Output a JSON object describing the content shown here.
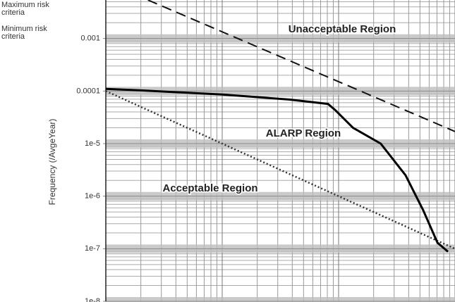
{
  "chart_data": {
    "type": "line",
    "y_label": "Frequency (/AvgeYear)",
    "annotations": [
      "Unacceptable Region",
      "ALARP Region",
      "Acceptable Region"
    ],
    "xlim": [
      1,
      1000
    ],
    "xscale": "log",
    "ylim": [
      1e-08,
      0.0054
    ],
    "yscale": "log",
    "yticks": [
      {
        "value": 1e-08,
        "label": "1e-8"
      },
      {
        "value": 1e-07,
        "label": "1e-7"
      },
      {
        "value": 1e-06,
        "label": "1e-6"
      },
      {
        "value": 1e-05,
        "label": "1e-5"
      },
      0.0001,
      0.001
    ],
    "grid": true,
    "series": [
      {
        "name": "Maximum risk criteria",
        "color": "#111111",
        "style": "dashed",
        "x": [
          2.3,
          1000
        ],
        "values": [
          0.0054,
          1.7e-05
        ]
      },
      {
        "name": "Minimum risk criteria",
        "color": "#333333",
        "style": "dotted",
        "x": [
          1,
          1000
        ],
        "values": [
          0.0001,
          1e-07
        ]
      },
      {
        "color": "#000000",
        "style": "solid",
        "x": [
          1,
          2,
          10,
          37.6,
          81,
          93,
          133,
          230,
          376,
          533,
          707,
          870
        ],
        "values": [
          0.00011,
          0.000103,
          8.6e-05,
          6.9e-05,
          5.7e-05,
          4.4e-05,
          2e-05,
          1e-05,
          2.5e-06,
          5.4e-07,
          1.3e-07,
          8.8e-08
        ]
      }
    ]
  }
}
